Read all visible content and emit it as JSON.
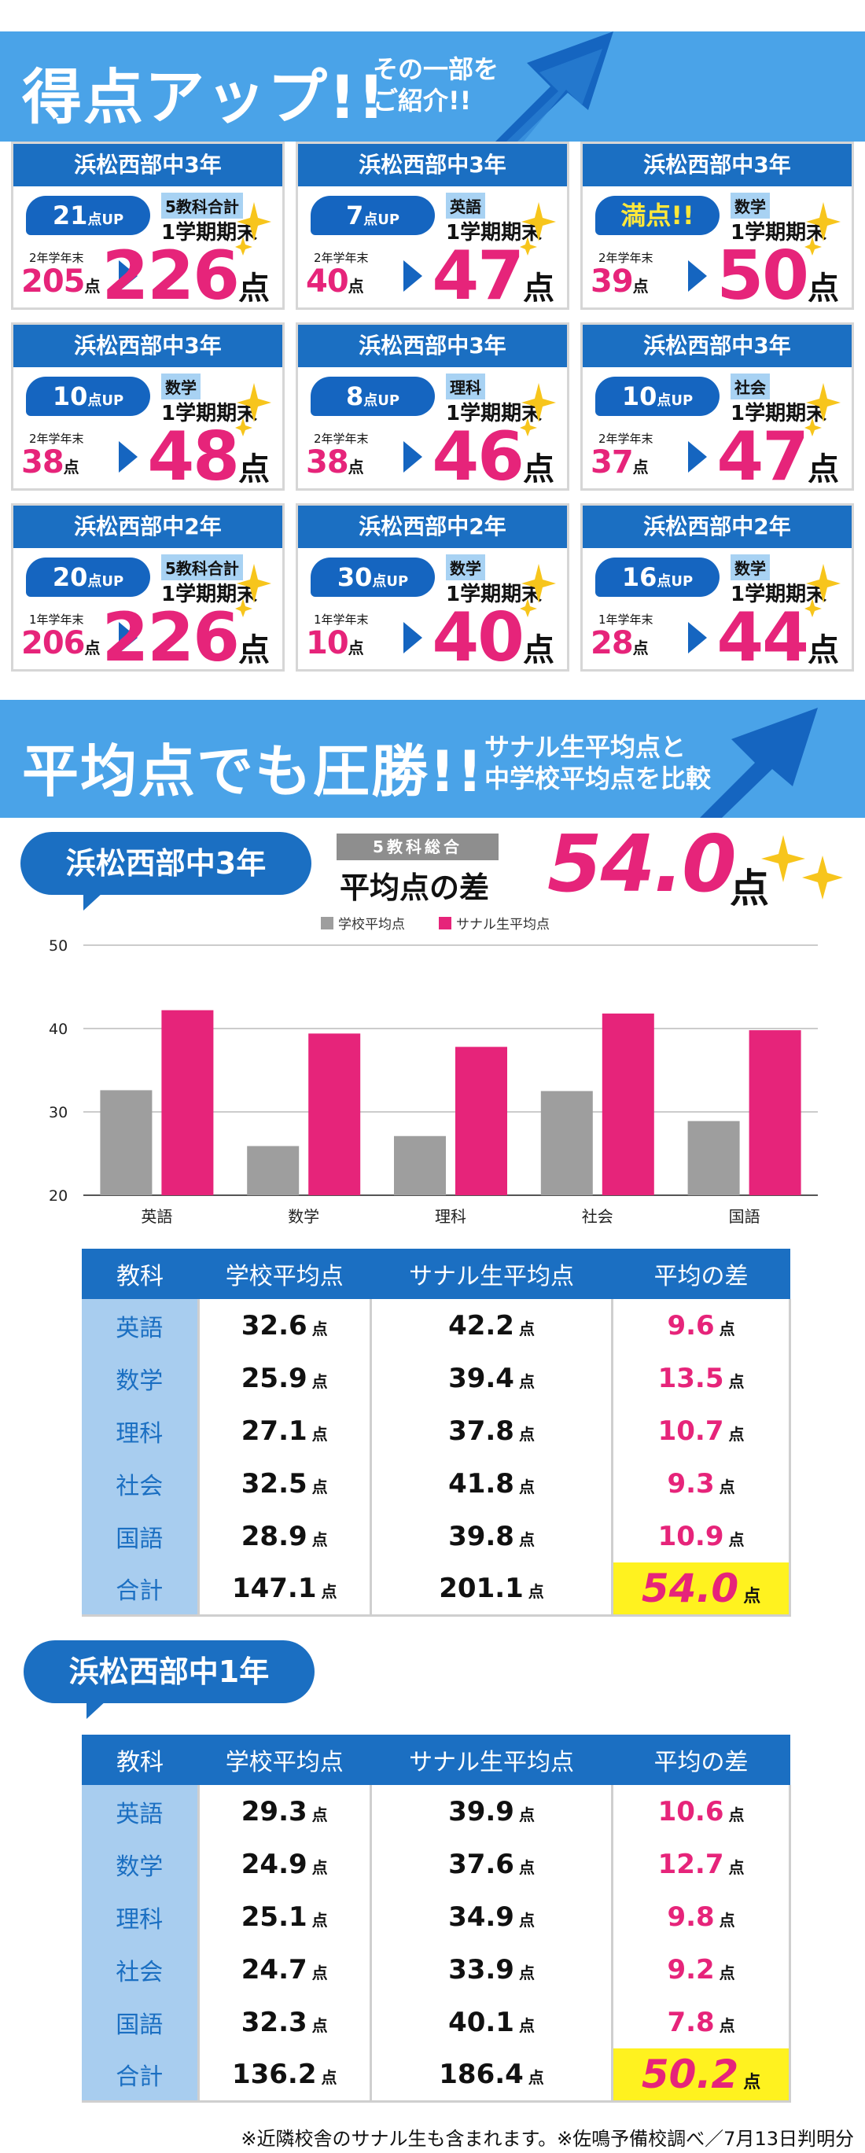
{
  "banner1": {
    "title": "得点アップ!!",
    "sub_line1": "その一部を",
    "sub_line2": "ご紹介!!"
  },
  "cards": [
    {
      "school": "浜松西部中3年",
      "up": "21",
      "up_unit": "点UP",
      "subject": "5教科合計",
      "term": "1学期期末",
      "prev_label": "2年学年末",
      "prev": "205",
      "now": "226",
      "unit": "点"
    },
    {
      "school": "浜松西部中3年",
      "up": "7",
      "up_unit": "点UP",
      "subject": "英語",
      "term": "1学期期末",
      "prev_label": "2年学年末",
      "prev": "40",
      "now": "47",
      "unit": "点"
    },
    {
      "school": "浜松西部中3年",
      "up": "満点!!",
      "up_unit": "",
      "subject": "数学",
      "term": "1学期期末",
      "prev_label": "2年学年末",
      "prev": "39",
      "now": "50",
      "unit": "点"
    },
    {
      "school": "浜松西部中3年",
      "up": "10",
      "up_unit": "点UP",
      "subject": "数学",
      "term": "1学期期末",
      "prev_label": "2年学年末",
      "prev": "38",
      "now": "48",
      "unit": "点"
    },
    {
      "school": "浜松西部中3年",
      "up": "8",
      "up_unit": "点UP",
      "subject": "理科",
      "term": "1学期期末",
      "prev_label": "2年学年末",
      "prev": "38",
      "now": "46",
      "unit": "点"
    },
    {
      "school": "浜松西部中3年",
      "up": "10",
      "up_unit": "点UP",
      "subject": "社会",
      "term": "1学期期末",
      "prev_label": "2年学年末",
      "prev": "37",
      "now": "47",
      "unit": "点"
    },
    {
      "school": "浜松西部中2年",
      "up": "20",
      "up_unit": "点UP",
      "subject": "5教科合計",
      "term": "1学期期末",
      "prev_label": "1年学年末",
      "prev": "206",
      "now": "226",
      "unit": "点"
    },
    {
      "school": "浜松西部中2年",
      "up": "30",
      "up_unit": "点UP",
      "subject": "数学",
      "term": "1学期期末",
      "prev_label": "1年学年末",
      "prev": "10",
      "now": "40",
      "unit": "点"
    },
    {
      "school": "浜松西部中2年",
      "up": "16",
      "up_unit": "点UP",
      "subject": "数学",
      "term": "1学期期末",
      "prev_label": "1年学年末",
      "prev": "28",
      "now": "44",
      "unit": "点"
    }
  ],
  "banner2": {
    "title": "平均点でも圧勝!!",
    "sub_line1": "サナル生平均点と",
    "sub_line2": "中学校平均点を比較"
  },
  "section3": {
    "heading": "浜松西部中3年",
    "tag": "5教科総合",
    "label": "平均点の差",
    "value": "54.0",
    "unit": "点"
  },
  "chart_data": {
    "type": "bar",
    "categories": [
      "英語",
      "数学",
      "理科",
      "社会",
      "国語"
    ],
    "series": [
      {
        "name": "学校平均点",
        "color": "#9e9e9e",
        "values": [
          32.6,
          25.9,
          27.1,
          32.5,
          28.9
        ]
      },
      {
        "name": "サナル生平均点",
        "color": "#e6247a",
        "values": [
          42.2,
          39.4,
          37.8,
          41.8,
          39.8
        ]
      }
    ],
    "ylim": [
      20,
      50
    ],
    "yticks": [
      20,
      30,
      40,
      50
    ],
    "legend": "top-center",
    "grid": true
  },
  "table_headers": [
    "教科",
    "学校平均点",
    "サナル生平均点",
    "平均の差"
  ],
  "unit": "点",
  "table3": [
    {
      "subject": "英語",
      "school": "32.6",
      "sanaru": "42.2",
      "diff": "9.6"
    },
    {
      "subject": "数学",
      "school": "25.9",
      "sanaru": "39.4",
      "diff": "13.5"
    },
    {
      "subject": "理科",
      "school": "27.1",
      "sanaru": "37.8",
      "diff": "10.7"
    },
    {
      "subject": "社会",
      "school": "32.5",
      "sanaru": "41.8",
      "diff": "9.3"
    },
    {
      "subject": "国語",
      "school": "28.9",
      "sanaru": "39.8",
      "diff": "10.9"
    },
    {
      "subject": "合計",
      "school": "147.1",
      "sanaru": "201.1",
      "diff": "54.0"
    }
  ],
  "section1": {
    "heading": "浜松西部中1年"
  },
  "table1": [
    {
      "subject": "英語",
      "school": "29.3",
      "sanaru": "39.9",
      "diff": "10.6"
    },
    {
      "subject": "数学",
      "school": "24.9",
      "sanaru": "37.6",
      "diff": "12.7"
    },
    {
      "subject": "理科",
      "school": "25.1",
      "sanaru": "34.9",
      "diff": "9.8"
    },
    {
      "subject": "社会",
      "school": "24.7",
      "sanaru": "33.9",
      "diff": "9.2"
    },
    {
      "subject": "国語",
      "school": "32.3",
      "sanaru": "40.1",
      "diff": "7.8"
    },
    {
      "subject": "合計",
      "school": "136.2",
      "sanaru": "186.4",
      "diff": "50.2"
    }
  ],
  "footnote": "※近隣校舎のサナル生も含まれます。※佐鳴予備校調べ／7月13日判明分"
}
